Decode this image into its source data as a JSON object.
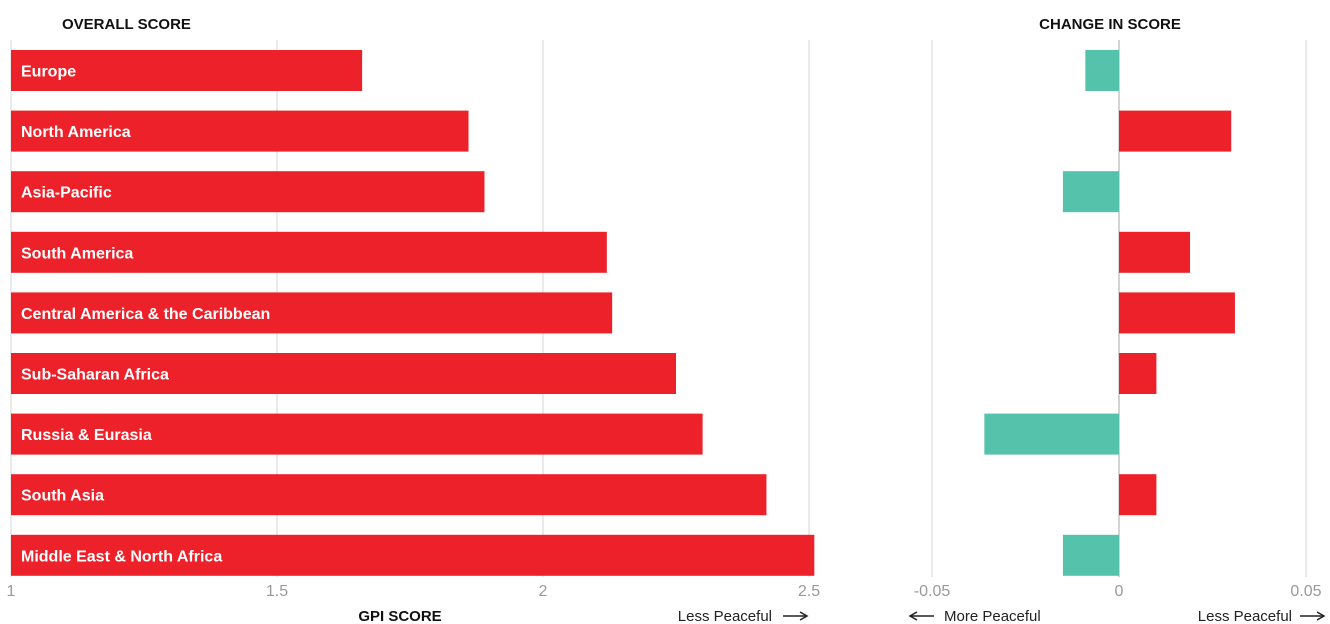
{
  "chart_data": [
    {
      "type": "bar",
      "orientation": "horizontal",
      "title": "OVERALL SCORE",
      "xlabel": "GPI SCORE",
      "direction_label": "Less Peaceful",
      "xlim": [
        1,
        2.5
      ],
      "xticks": [
        "1",
        "1.5",
        "2",
        "2.5"
      ],
      "categories": [
        "Europe",
        "North America",
        "Asia-Pacific",
        "South America",
        "Central America & the Caribbean",
        "Sub-Saharan Africa",
        "Russia & Eurasia",
        "South Asia",
        "Middle East & North Africa"
      ],
      "values": [
        1.66,
        1.86,
        1.89,
        2.12,
        2.13,
        2.25,
        2.3,
        2.42,
        2.51
      ],
      "color": "#ED2129",
      "grid": true
    },
    {
      "type": "bar",
      "orientation": "horizontal",
      "title": "CHANGE IN SCORE",
      "xlim": [
        -0.05,
        0.05
      ],
      "xticks": [
        "-0.05",
        "0",
        "0.05"
      ],
      "left_label": "More Peaceful",
      "right_label": "Less Peaceful",
      "categories": [
        "Europe",
        "North America",
        "Asia-Pacific",
        "South America",
        "Central America & the Caribbean",
        "Sub-Saharan Africa",
        "Russia & Eurasia",
        "South Asia",
        "Middle East & North Africa"
      ],
      "values": [
        -0.009,
        0.03,
        -0.015,
        0.019,
        0.031,
        0.01,
        -0.036,
        0.01,
        -0.015
      ],
      "colors": {
        "positive": "#ED2129",
        "negative": "#55C2AB"
      },
      "grid": true
    }
  ]
}
